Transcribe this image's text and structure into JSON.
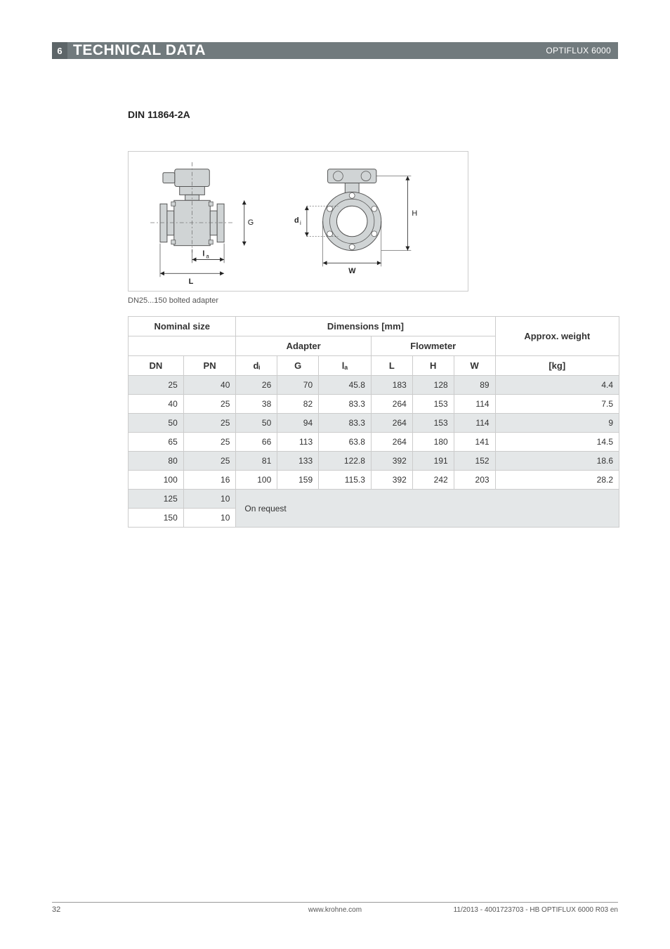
{
  "header": {
    "section_number": "6",
    "title": "TECHNICAL DATA",
    "product": "OPTIFLUX 6000"
  },
  "section": {
    "title": "DIN 11864-2A"
  },
  "diagram": {
    "caption": "DN25...150 bolted adapter",
    "labels": {
      "G": "G",
      "la": "lₐ",
      "L": "L",
      "di": "dᵢ",
      "W": "W",
      "H": "H"
    },
    "colors": {
      "border": "#cccccc",
      "shape_fill": "#d0d4d5",
      "shape_stroke": "#555555",
      "dash": "#777777",
      "text": "#222222"
    }
  },
  "table": {
    "header_row1": [
      "Nominal size",
      "Dimensions [mm]",
      "Approx. weight"
    ],
    "header_row2": [
      "Adapter",
      "Flowmeter"
    ],
    "header_row3": [
      "DN",
      "PN",
      "dᵢ",
      "G",
      "lₐ",
      "L",
      "H",
      "W",
      "[kg]"
    ],
    "rows": [
      {
        "shaded": true,
        "cells": [
          "25",
          "40",
          "26",
          "70",
          "45.8",
          "183",
          "128",
          "89",
          "4.4"
        ]
      },
      {
        "shaded": false,
        "cells": [
          "40",
          "25",
          "38",
          "82",
          "83.3",
          "264",
          "153",
          "114",
          "7.5"
        ]
      },
      {
        "shaded": true,
        "cells": [
          "50",
          "25",
          "50",
          "94",
          "83.3",
          "264",
          "153",
          "114",
          "9"
        ]
      },
      {
        "shaded": false,
        "cells": [
          "65",
          "25",
          "66",
          "113",
          "63.8",
          "264",
          "180",
          "141",
          "14.5"
        ]
      },
      {
        "shaded": true,
        "cells": [
          "80",
          "25",
          "81",
          "133",
          "122.8",
          "392",
          "191",
          "152",
          "18.6"
        ]
      },
      {
        "shaded": false,
        "cells": [
          "100",
          "16",
          "100",
          "159",
          "115.3",
          "392",
          "242",
          "203",
          "28.2"
        ]
      }
    ],
    "on_request_rows": [
      {
        "shaded": true,
        "dn": "125",
        "pn": "10"
      },
      {
        "shaded": false,
        "dn": "150",
        "pn": "10"
      }
    ],
    "on_request_text": "On request"
  },
  "footer": {
    "page_number": "32",
    "url": "www.krohne.com",
    "doc_info": "11/2013 - 4001723703 - HB OPTIFLUX 6000 R03 en"
  }
}
